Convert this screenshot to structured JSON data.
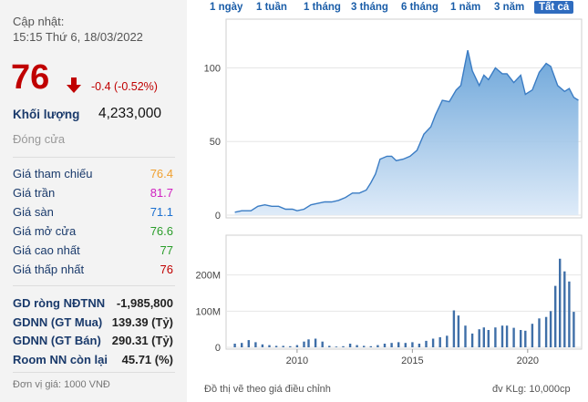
{
  "summary": {
    "update_label": "Cập nhật:",
    "update_time": "15:15 Thứ 6, 18/03/2022",
    "price": "76",
    "change": "-0.4 (-0.52%)",
    "volume_label": "Khối lượng",
    "volume_value": "4,233,000",
    "close_label": "Đóng cửa"
  },
  "price_stats": [
    {
      "label": "Giá tham chiếu",
      "value": "76.4",
      "color": "#f0a030"
    },
    {
      "label": "Giá trần",
      "value": "81.7",
      "color": "#d020c0"
    },
    {
      "label": "Giá sàn",
      "value": "71.1",
      "color": "#1a6fd0"
    },
    {
      "label": "Giá mở cửa",
      "value": "76.6",
      "color": "#2a9d2a"
    },
    {
      "label": "Giá cao nhất",
      "value": "77",
      "color": "#2a9d2a"
    },
    {
      "label": "Giá thấp nhất",
      "value": "76",
      "color": "#c00000"
    }
  ],
  "foreign_stats": [
    {
      "label": "GD ròng NĐTNN",
      "value": "-1,985,800"
    },
    {
      "label": "GDNN (GT Mua)",
      "value": "139.39 (Tỷ)"
    },
    {
      "label": "GDNN (GT Bán)",
      "value": "290.31 (Tỷ)"
    },
    {
      "label": "Room NN còn lại",
      "value": "45.71 (%)"
    }
  ],
  "footnote": "Đơn vị giá: 1000 VNĐ",
  "tabs": [
    "1 ngày",
    "1 tuần",
    "1 tháng",
    "3 tháng",
    "6 tháng",
    "1 năm",
    "3 năm",
    "Tất cả"
  ],
  "active_tab": "Tất cả",
  "chart_note": "Đồ thị vẽ theo giá điều chỉnh",
  "unit_note": "đv KLg: 10,000cp",
  "colors": {
    "up": "#2a9d2a",
    "down": "#c00000",
    "area_top": "#5b9bd5",
    "area_bottom": "#dbe9f8",
    "bars": "#3f6fa8"
  },
  "chart_data": [
    {
      "type": "area",
      "ylim": [
        0,
        130
      ],
      "yticks": [
        0,
        50,
        100
      ],
      "x": [
        2007.3,
        2007.6,
        2008.0,
        2008.3,
        2008.6,
        2008.9,
        2009.2,
        2009.5,
        2009.8,
        2010.0,
        2010.3,
        2010.6,
        2010.9,
        2011.2,
        2011.5,
        2011.8,
        2012.1,
        2012.4,
        2012.7,
        2013.0,
        2013.2,
        2013.4,
        2013.6,
        2013.9,
        2014.1,
        2014.3,
        2014.6,
        2014.9,
        2015.2,
        2015.5,
        2015.8,
        2016.0,
        2016.3,
        2016.6,
        2016.9,
        2017.1,
        2017.4,
        2017.6,
        2017.9,
        2018.1,
        2018.3,
        2018.6,
        2018.9,
        2019.1,
        2019.4,
        2019.7,
        2019.9,
        2020.2,
        2020.5,
        2020.8,
        2021.0,
        2021.3,
        2021.6,
        2021.8,
        2022.0,
        2022.2
      ],
      "values": [
        2,
        3,
        3,
        6,
        7,
        6,
        6,
        4,
        4,
        3,
        4,
        7,
        8,
        9,
        9,
        10,
        12,
        15,
        15,
        17,
        22,
        28,
        38,
        40,
        40,
        37,
        38,
        40,
        44,
        55,
        60,
        68,
        78,
        77,
        85,
        88,
        112,
        98,
        88,
        95,
        92,
        100,
        96,
        96,
        90,
        95,
        82,
        85,
        97,
        103,
        101,
        88,
        84,
        86,
        80,
        78
      ],
      "xticks": [
        2010,
        2015,
        2020
      ]
    },
    {
      "type": "bar",
      "ylim": [
        0,
        300
      ],
      "yticks": [
        0,
        100,
        200
      ],
      "ytick_labels": [
        "0",
        "100M",
        "200M"
      ],
      "x": [
        2007.3,
        2007.6,
        2007.9,
        2008.2,
        2008.5,
        2008.8,
        2009.1,
        2009.4,
        2009.7,
        2010.0,
        2010.3,
        2010.5,
        2010.8,
        2011.1,
        2011.4,
        2011.7,
        2012.0,
        2012.3,
        2012.6,
        2012.9,
        2013.2,
        2013.5,
        2013.8,
        2014.1,
        2014.4,
        2014.7,
        2015.0,
        2015.3,
        2015.6,
        2015.9,
        2016.2,
        2016.5,
        2016.8,
        2017.0,
        2017.3,
        2017.6,
        2017.9,
        2018.1,
        2018.3,
        2018.6,
        2018.9,
        2019.1,
        2019.4,
        2019.7,
        2019.9,
        2020.2,
        2020.5,
        2020.8,
        2021.0,
        2021.2,
        2021.4,
        2021.6,
        2021.8,
        2022.0
      ],
      "values": [
        10,
        12,
        20,
        14,
        8,
        6,
        4,
        4,
        3,
        6,
        16,
        22,
        24,
        16,
        4,
        2,
        3,
        10,
        6,
        4,
        3,
        6,
        10,
        12,
        14,
        12,
        14,
        10,
        18,
        24,
        28,
        32,
        102,
        88,
        60,
        38,
        50,
        55,
        48,
        55,
        60,
        60,
        54,
        48,
        46,
        65,
        80,
        84,
        100,
        170,
        245,
        210,
        182,
        98
      ]
    }
  ]
}
